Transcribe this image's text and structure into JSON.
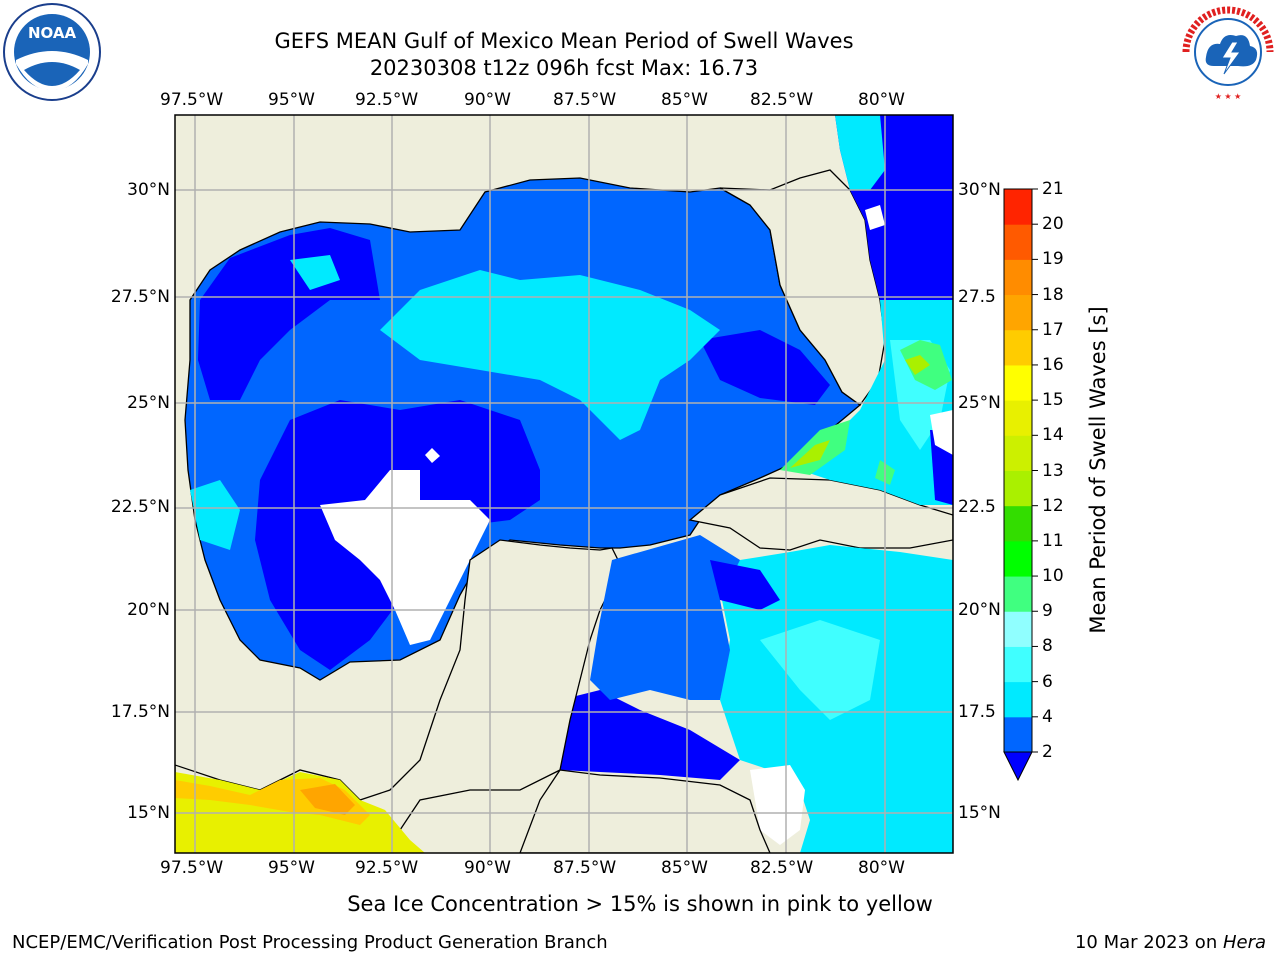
{
  "title": {
    "line1": "GEFS MEAN Gulf of Mexico Mean Period of Swell Waves",
    "line2": "20230308 t12z 096h fcst   Max: 16.73"
  },
  "logos": {
    "left": "noara-logo",
    "left_text": "NOAA",
    "right": "nws-logo",
    "right_text": "NATIONAL WEATHER SERVICE"
  },
  "map": {
    "lon_labels": [
      "97.5°W",
      "95°W",
      "92.5°W",
      "90°W",
      "87.5°W",
      "85°W",
      "82.5°W",
      "80°W"
    ],
    "lat_labels_left": [
      "30°N",
      "27.5°N",
      "25°N",
      "22.5°N",
      "20°N",
      "17.5°N",
      "15°N"
    ],
    "lat_labels_right": [
      "30°N",
      "27.5",
      "25°N",
      "22.5",
      "20°N",
      "17.5",
      "15°N"
    ],
    "colors": {
      "land": "#eeeedc",
      "grid": "#b0b0b0",
      "coast": "#000000"
    }
  },
  "colorbar": {
    "label": "Mean Period of Swell Waves [s]",
    "ticks": [
      "2",
      "4",
      "6",
      "8",
      "9",
      "10",
      "11",
      "12",
      "13",
      "14",
      "15",
      "16",
      "17",
      "18",
      "19",
      "20",
      "21"
    ],
    "colors": [
      "#0066ff",
      "#00eaff",
      "#40ffff",
      "#90ffff",
      "#40ff80",
      "#00ff00",
      "#33dd00",
      "#aaf000",
      "#ccf000",
      "#e8f000",
      "#ffff00",
      "#ffcc00",
      "#ffa500",
      "#ff8c00",
      "#ff5a00",
      "#ff2400"
    ],
    "under_color": "#0000ff"
  },
  "notes": {
    "sea_ice": "Sea Ice Concentration > 15% is shown in pink to yellow"
  },
  "footer": {
    "left": "NCEP/EMC/Verification Post Processing Product Generation Branch",
    "date": "10 Mar 2023 on ",
    "machine": "Hera"
  }
}
